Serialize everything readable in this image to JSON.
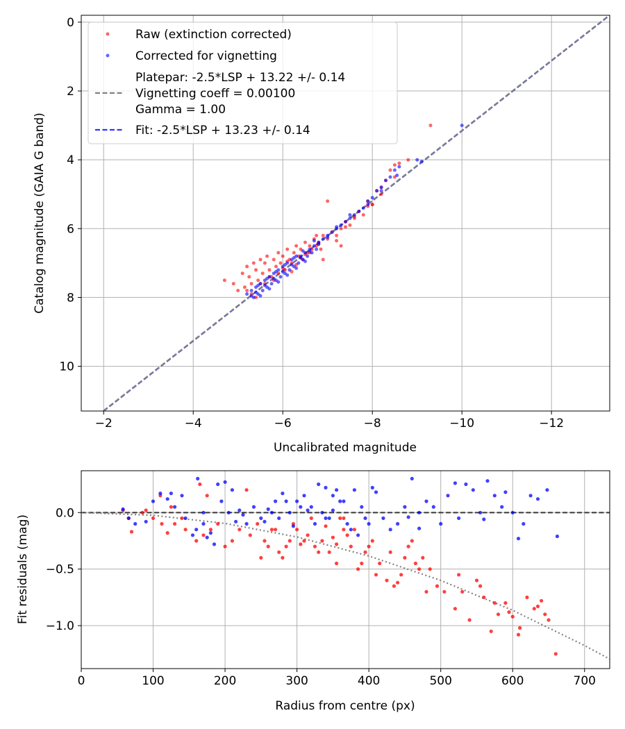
{
  "chart_data": [
    {
      "type": "scatter",
      "xlabel": "Uncalibrated magnitude",
      "ylabel": "Catalog magnitude (GAIA G band)",
      "xlim": [
        -1.5,
        -13.3
      ],
      "ylim": [
        11.3,
        -0.2
      ],
      "x_inverted": true,
      "y_inverted": true,
      "xticks": [
        -2,
        -4,
        -6,
        -8,
        -10,
        -12
      ],
      "xtick_labels": [
        "−2",
        "−4",
        "−6",
        "−8",
        "−10",
        "−12"
      ],
      "yticks": [
        0,
        2,
        4,
        6,
        8,
        10
      ],
      "ytick_labels": [
        "0",
        "2",
        "4",
        "6",
        "8",
        "10"
      ],
      "grid": true,
      "legend_position": "upper-left",
      "legend": [
        {
          "label": "Raw (extinction corrected)",
          "marker": "dot",
          "color": "#ff0000"
        },
        {
          "label": "Corrected for vignetting",
          "marker": "dot",
          "color": "#0000ff"
        },
        {
          "label_lines": [
            "Platepar: -2.5*LSP + 13.22 +/- 0.14",
            "Vignetting coeff = 0.00100",
            "Gamma = 1.00"
          ],
          "marker": "dashed-line",
          "color": "#808080"
        },
        {
          "label": "Fit: -2.5*LSP + 13.23 +/- 0.14",
          "marker": "dashed-line",
          "color": "#0000ff"
        }
      ],
      "series": [
        {
          "name": "Raw (extinction corrected)",
          "color": "#ff0000",
          "x": [
            -4.7,
            -4.9,
            -5.0,
            -5.1,
            -5.15,
            -5.2,
            -5.25,
            -5.3,
            -5.35,
            -5.4,
            -5.45,
            -5.5,
            -5.55,
            -5.6,
            -5.65,
            -5.7,
            -5.75,
            -5.8,
            -5.85,
            -5.9,
            -5.95,
            -6.0,
            -6.05,
            -6.1,
            -6.15,
            -6.2,
            -6.25,
            -6.3,
            -6.35,
            -6.4,
            -6.45,
            -6.5,
            -6.55,
            -6.6,
            -6.65,
            -6.7,
            -6.75,
            -6.8,
            -6.85,
            -6.9,
            -7.0,
            -7.1,
            -7.2,
            -7.3,
            -7.4,
            -7.5,
            -7.6,
            -7.7,
            -7.8,
            -7.9,
            -8.0,
            -8.1,
            -8.2,
            -8.3,
            -8.4,
            -8.5,
            -8.6,
            -9.3,
            -5.3,
            -5.5,
            -5.7,
            -5.9,
            -6.1,
            -6.3,
            -6.5,
            -6.8,
            -7.2,
            -7.4,
            -7.6,
            -7.9,
            -8.2,
            -8.5,
            -6.0,
            -6.2,
            -6.4,
            -5.6,
            -5.8,
            -6.6,
            -7.0,
            -5.4,
            -5.2,
            -6.9,
            -7.3,
            -8.0,
            -8.8,
            -6.75
          ],
          "y": [
            7.5,
            7.6,
            7.8,
            7.3,
            7.7,
            7.1,
            7.4,
            7.6,
            7.0,
            7.2,
            7.5,
            6.9,
            7.3,
            7.0,
            6.8,
            7.2,
            7.4,
            6.9,
            7.1,
            6.7,
            7.0,
            6.8,
            7.2,
            6.6,
            6.9,
            7.0,
            6.7,
            6.5,
            6.8,
            6.6,
            6.9,
            6.4,
            6.7,
            6.5,
            6.6,
            6.3,
            6.5,
            6.4,
            6.6,
            6.2,
            6.3,
            6.1,
            6.2,
            6.0,
            5.8,
            5.9,
            5.7,
            5.5,
            5.6,
            5.2,
            5.3,
            4.9,
            5.0,
            4.6,
            4.3,
            4.5,
            4.1,
            3.0,
            7.9,
            7.6,
            7.4,
            7.3,
            6.95,
            7.05,
            6.75,
            6.45,
            6.35,
            5.95,
            5.65,
            5.35,
            4.8,
            4.15,
            7.15,
            7.25,
            6.85,
            7.6,
            7.5,
            6.7,
            5.2,
            8.0,
            7.8,
            6.9,
            6.5,
            5.3,
            4.0,
            6.2
          ]
        },
        {
          "name": "Corrected for vignetting",
          "color": "#0000ff",
          "x": [
            -5.2,
            -5.3,
            -5.35,
            -5.4,
            -5.45,
            -5.5,
            -5.55,
            -5.6,
            -5.65,
            -5.7,
            -5.75,
            -5.8,
            -5.85,
            -5.9,
            -5.95,
            -6.0,
            -6.05,
            -6.1,
            -6.15,
            -6.2,
            -6.25,
            -6.3,
            -6.35,
            -6.4,
            -6.45,
            -6.5,
            -6.55,
            -6.6,
            -6.65,
            -6.7,
            -6.75,
            -6.8,
            -6.9,
            -7.0,
            -7.1,
            -7.2,
            -7.3,
            -7.4,
            -7.5,
            -7.6,
            -7.7,
            -7.8,
            -7.9,
            -8.0,
            -8.1,
            -8.2,
            -8.3,
            -8.4,
            -8.5,
            -8.6,
            -9.0,
            -10.0,
            -5.5,
            -5.7,
            -5.9,
            -6.1,
            -6.3,
            -6.5,
            -5.4,
            -5.6,
            -5.8,
            -6.0,
            -6.2,
            -6.4,
            -6.6,
            -6.8,
            -7.0,
            -5.3,
            -5.45,
            -5.65,
            -5.85,
            -6.05,
            -6.25,
            -6.45,
            -6.7,
            -7.2,
            -7.5,
            -7.9,
            -8.2,
            -8.55,
            -9.1
          ],
          "y": [
            7.9,
            7.8,
            8.0,
            7.7,
            7.9,
            7.6,
            7.8,
            7.5,
            7.7,
            7.4,
            7.6,
            7.3,
            7.5,
            7.2,
            7.4,
            7.1,
            7.3,
            7.0,
            7.2,
            6.9,
            7.1,
            6.8,
            7.0,
            6.8,
            6.9,
            6.7,
            6.8,
            6.6,
            6.7,
            6.5,
            6.6,
            6.4,
            6.3,
            6.2,
            6.1,
            6.0,
            5.9,
            5.8,
            5.7,
            5.6,
            5.5,
            5.4,
            5.2,
            5.1,
            4.9,
            4.8,
            4.6,
            4.5,
            4.3,
            4.2,
            4.0,
            3.0,
            7.95,
            7.75,
            7.55,
            7.35,
            7.15,
            6.95,
            7.85,
            7.65,
            7.45,
            7.25,
            7.05,
            6.85,
            6.65,
            6.45,
            6.25,
            7.95,
            7.65,
            7.45,
            7.25,
            7.05,
            6.85,
            6.65,
            6.35,
            5.95,
            5.6,
            5.3,
            4.9,
            4.45,
            4.05
          ]
        }
      ],
      "lines": [
        {
          "name": "Fit: -2.5*LSP + 13.23 +/- 0.14",
          "color": "#0000ff",
          "style": "dashed",
          "x": [
            -2,
            -13.3
          ],
          "y": [
            11.3,
            -0.2
          ]
        },
        {
          "name": "Platepar: -2.5*LSP + 13.22 +/- 0.14",
          "color": "#808080",
          "style": "dashed",
          "x": [
            -2,
            -13.3
          ],
          "y": [
            11.29,
            -0.21
          ]
        }
      ]
    },
    {
      "type": "scatter",
      "xlabel": "Radius from centre (px)",
      "ylabel": "Fit residuals (mag)",
      "xlim": [
        0,
        735
      ],
      "ylim": [
        -1.38,
        0.37
      ],
      "xticks": [
        0,
        100,
        200,
        300,
        400,
        500,
        600,
        700
      ],
      "xtick_labels": [
        "0",
        "100",
        "200",
        "300",
        "400",
        "500",
        "600",
        "700"
      ],
      "yticks": [
        0.0,
        -0.5,
        -1.0
      ],
      "ytick_labels": [
        "0.0",
        "−0.5",
        "−1.0"
      ],
      "grid": true,
      "series": [
        {
          "name": "Raw (extinction corrected)",
          "color": "#ff0000",
          "x": [
            58,
            66,
            70,
            85,
            100,
            112,
            120,
            130,
            145,
            160,
            170,
            180,
            190,
            200,
            210,
            220,
            235,
            245,
            255,
            265,
            275,
            285,
            295,
            305,
            315,
            325,
            335,
            345,
            355,
            365,
            375,
            385,
            395,
            405,
            415,
            425,
            435,
            445,
            455,
            465,
            475,
            485,
            495,
            505,
            520,
            530,
            540,
            550,
            560,
            570,
            580,
            590,
            600,
            610,
            620,
            630,
            640,
            650,
            660,
            300,
            310,
            320,
            330,
            340,
            350,
            360,
            250,
            260,
            270,
            280,
            290,
            380,
            390,
            400,
            410,
            430,
            440,
            450,
            460,
            470,
            480,
            525,
            555,
            575,
            595,
            608,
            635,
            645,
            165,
            175,
            110,
            90,
            125,
            140,
            230,
            355,
            365,
            370
          ],
          "y": [
            0.02,
            -0.05,
            -0.17,
            0.0,
            -0.05,
            -0.1,
            -0.18,
            -0.1,
            -0.15,
            -0.25,
            -0.2,
            -0.15,
            -0.1,
            -0.3,
            -0.25,
            -0.15,
            -0.2,
            -0.1,
            -0.25,
            -0.15,
            -0.35,
            -0.3,
            -0.1,
            -0.28,
            -0.2,
            -0.3,
            -0.25,
            -0.35,
            -0.45,
            -0.15,
            -0.3,
            -0.5,
            -0.35,
            -0.25,
            -0.45,
            -0.6,
            -0.65,
            -0.55,
            -0.3,
            -0.45,
            -0.4,
            -0.5,
            -0.65,
            -0.7,
            -0.85,
            -0.7,
            -0.95,
            -0.6,
            -0.75,
            -1.05,
            -0.9,
            -0.8,
            -0.92,
            -1.02,
            -0.75,
            -0.85,
            -0.78,
            -0.95,
            -1.25,
            -0.15,
            -0.25,
            -0.05,
            -0.35,
            -0.12,
            -0.22,
            -0.05,
            -0.4,
            -0.3,
            -0.15,
            -0.4,
            -0.25,
            -0.15,
            -0.45,
            -0.3,
            -0.55,
            -0.35,
            -0.62,
            -0.4,
            -0.25,
            -0.5,
            -0.7,
            -0.55,
            -0.65,
            -0.8,
            -0.88,
            -1.08,
            -0.83,
            -0.9,
            0.25,
            0.15,
            0.15,
            0.02,
            0.05,
            -0.05,
            0.2,
            -0.28,
            -0.05,
            -0.2
          ]
        },
        {
          "name": "Corrected for vignetting",
          "color": "#0000ff",
          "x": [
            58,
            66,
            75,
            90,
            100,
            110,
            120,
            130,
            145,
            155,
            162,
            170,
            180,
            190,
            200,
            210,
            220,
            230,
            240,
            250,
            260,
            270,
            280,
            290,
            300,
            310,
            320,
            330,
            340,
            350,
            360,
            370,
            380,
            390,
            400,
            410,
            420,
            430,
            440,
            450,
            460,
            470,
            480,
            490,
            500,
            510,
            525,
            535,
            545,
            555,
            565,
            575,
            585,
            600,
            615,
            625,
            635,
            648,
            662,
            305,
            315,
            325,
            335,
            345,
            355,
            365,
            375,
            255,
            265,
            275,
            285,
            295,
            185,
            195,
            205,
            215,
            225,
            170,
            160,
            175,
            125,
            140,
            385,
            395,
            405,
            455,
            470,
            520,
            560,
            590,
            608,
            340,
            350
          ],
          "y": [
            0.03,
            -0.05,
            -0.1,
            -0.08,
            0.1,
            0.17,
            0.12,
            0.05,
            -0.05,
            -0.2,
            0.3,
            0.0,
            -0.18,
            0.25,
            0.27,
            0.2,
            0.02,
            -0.1,
            0.05,
            -0.05,
            0.03,
            0.1,
            0.17,
            0.0,
            0.1,
            0.15,
            0.05,
            0.25,
            -0.05,
            0.15,
            0.1,
            -0.1,
            0.2,
            0.05,
            -0.1,
            0.18,
            -0.05,
            -0.15,
            -0.1,
            0.05,
            0.3,
            0.0,
            0.1,
            0.05,
            -0.1,
            0.15,
            -0.05,
            0.25,
            0.2,
            0.0,
            0.28,
            0.15,
            0.05,
            0.0,
            -0.1,
            0.15,
            0.12,
            0.2,
            -0.21,
            0.05,
            0.02,
            -0.1,
            0.0,
            -0.05,
            0.2,
            0.1,
            -0.15,
            -0.08,
            0.0,
            -0.05,
            0.1,
            -0.12,
            -0.28,
            0.1,
            0.0,
            -0.08,
            -0.02,
            -0.1,
            -0.15,
            -0.22,
            0.17,
            0.15,
            -0.2,
            -0.05,
            0.22,
            -0.04,
            -0.14,
            0.26,
            -0.06,
            0.18,
            -0.23,
            0.22,
            0.02
          ]
        }
      ],
      "lines": [
        {
          "name": "zero",
          "color": "#404040",
          "style": "dashed",
          "x": [
            0,
            735
          ],
          "y": [
            0,
            0
          ]
        },
        {
          "name": "vignetting model",
          "color": "#808080",
          "style": "dotted",
          "x": [
            0,
            100,
            200,
            300,
            400,
            500,
            600,
            700,
            735
          ],
          "y": [
            0,
            -0.024,
            -0.096,
            -0.216,
            -0.384,
            -0.6,
            -0.864,
            -1.176,
            -1.296
          ]
        }
      ]
    }
  ]
}
